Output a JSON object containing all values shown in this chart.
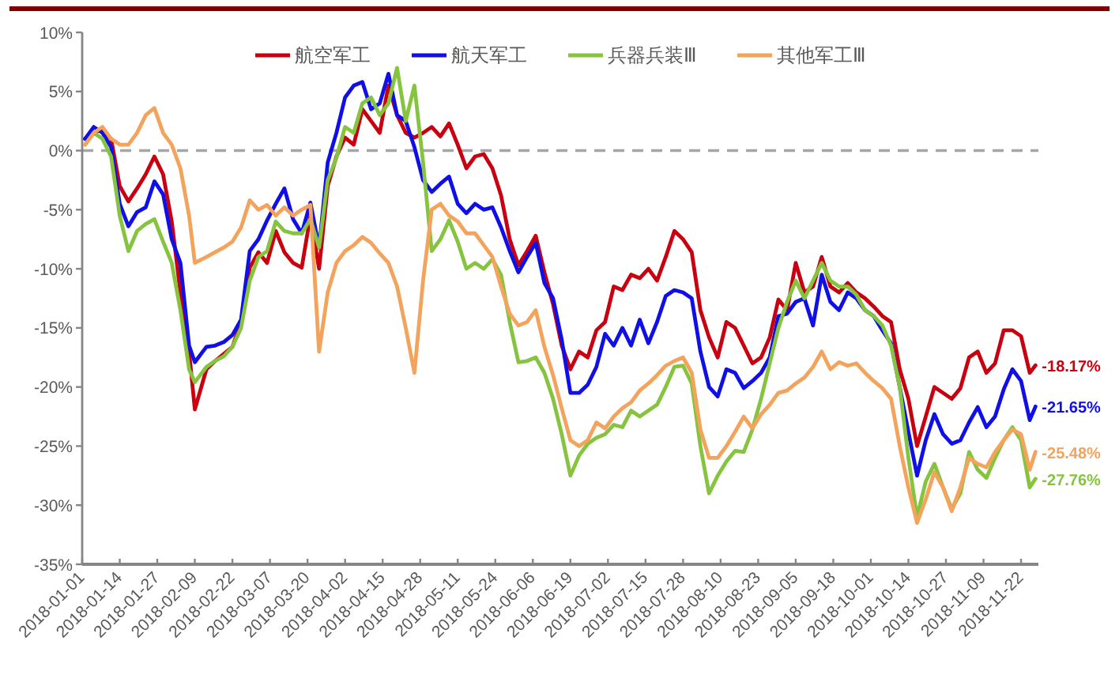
{
  "chart_data": {
    "type": "line",
    "x": [
      "2018-01-02",
      "2018-01-05",
      "2018-01-08",
      "2018-01-11",
      "2018-01-14",
      "2018-01-17",
      "2018-01-20",
      "2018-01-23",
      "2018-01-26",
      "2018-01-29",
      "2018-02-01",
      "2018-02-04",
      "2018-02-07",
      "2018-02-09",
      "2018-02-13",
      "2018-02-16",
      "2018-02-19",
      "2018-02-22",
      "2018-02-25",
      "2018-02-28",
      "2018-03-03",
      "2018-03-06",
      "2018-03-09",
      "2018-03-12",
      "2018-03-15",
      "2018-03-18",
      "2018-03-21",
      "2018-03-24",
      "2018-03-27",
      "2018-03-30",
      "2018-04-02",
      "2018-04-05",
      "2018-04-08",
      "2018-04-11",
      "2018-04-14",
      "2018-04-17",
      "2018-04-20",
      "2018-04-23",
      "2018-04-26",
      "2018-04-29",
      "2018-05-02",
      "2018-05-05",
      "2018-05-08",
      "2018-05-11",
      "2018-05-14",
      "2018-05-17",
      "2018-05-20",
      "2018-05-23",
      "2018-05-26",
      "2018-05-29",
      "2018-06-01",
      "2018-06-04",
      "2018-06-07",
      "2018-06-10",
      "2018-06-13",
      "2018-06-16",
      "2018-06-19",
      "2018-06-22",
      "2018-06-25",
      "2018-06-28",
      "2018-07-01",
      "2018-07-04",
      "2018-07-07",
      "2018-07-10",
      "2018-07-13",
      "2018-07-16",
      "2018-07-19",
      "2018-07-22",
      "2018-07-25",
      "2018-07-28",
      "2018-07-31",
      "2018-08-03",
      "2018-08-06",
      "2018-08-09",
      "2018-08-12",
      "2018-08-15",
      "2018-08-18",
      "2018-08-21",
      "2018-08-24",
      "2018-08-27",
      "2018-08-30",
      "2018-09-02",
      "2018-09-05",
      "2018-09-08",
      "2018-09-11",
      "2018-09-14",
      "2018-09-17",
      "2018-09-20",
      "2018-09-23",
      "2018-09-26",
      "2018-09-29",
      "2018-10-02",
      "2018-10-05",
      "2018-10-08",
      "2018-10-11",
      "2018-10-14",
      "2018-10-17",
      "2018-10-20",
      "2018-10-23",
      "2018-10-26",
      "2018-10-29",
      "2018-11-01",
      "2018-11-04",
      "2018-11-07",
      "2018-11-10",
      "2018-11-13",
      "2018-11-16",
      "2018-11-19",
      "2018-11-22",
      "2018-11-25",
      "2018-11-27"
    ],
    "xlim": [
      "2018-01-01",
      "2018-11-28"
    ],
    "xticks": [
      "2018-01-01",
      "2018-01-14",
      "2018-01-27",
      "2018-02-09",
      "2018-02-22",
      "2018-03-07",
      "2018-03-20",
      "2018-04-02",
      "2018-04-15",
      "2018-04-28",
      "2018-05-11",
      "2018-05-24",
      "2018-06-06",
      "2018-06-19",
      "2018-07-02",
      "2018-07-15",
      "2018-07-28",
      "2018-08-10",
      "2018-08-23",
      "2018-09-05",
      "2018-09-18",
      "2018-10-01",
      "2018-10-14",
      "2018-10-27",
      "2018-11-09",
      "2018-11-22"
    ],
    "ylim": [
      -35,
      10
    ],
    "yticks": [
      {
        "value": 10,
        "label": "10%"
      },
      {
        "value": 5,
        "label": "5%"
      },
      {
        "value": 0,
        "label": "0%"
      },
      {
        "value": -5,
        "label": "-5%"
      },
      {
        "value": -10,
        "label": "-10%"
      },
      {
        "value": -15,
        "label": "-15%"
      },
      {
        "value": -20,
        "label": "-20%"
      },
      {
        "value": -25,
        "label": "-25%"
      },
      {
        "value": -30,
        "label": "-30%"
      },
      {
        "value": -35,
        "label": "-35%"
      }
    ],
    "grid": false,
    "legend": "top",
    "ref_lines": [
      {
        "axis": "y",
        "value": 0,
        "color": "#a6a6a6",
        "line_style": "dashed"
      }
    ],
    "series": [
      {
        "name": "航空军工",
        "color": "#c8000f",
        "values": [
          1.0,
          1.5,
          1.8,
          1.0,
          -3.0,
          -4.3,
          -3.2,
          -2.0,
          -0.5,
          -2.0,
          -6.0,
          -12.0,
          -17.0,
          -21.9,
          -18.5,
          -17.8,
          -17.2,
          -16.6,
          -14.5,
          -9.9,
          -8.6,
          -9.5,
          -6.8,
          -8.6,
          -9.5,
          -9.9,
          -5.5,
          -10.0,
          -3.0,
          -0.5,
          1.1,
          0.5,
          3.5,
          2.5,
          1.5,
          5.5,
          3.0,
          1.5,
          1.1,
          1.5,
          2.0,
          1.2,
          2.3,
          0.5,
          -1.5,
          -0.5,
          -0.3,
          -1.5,
          -3.8,
          -7.5,
          -9.7,
          -8.5,
          -7.2,
          -10.3,
          -13.0,
          -16.5,
          -18.5,
          -17.0,
          -17.5,
          -15.2,
          -14.5,
          -11.5,
          -11.8,
          -10.5,
          -10.8,
          -10.0,
          -11.0,
          -9.0,
          -6.8,
          -7.5,
          -8.6,
          -13.5,
          -15.8,
          -17.5,
          -14.5,
          -15.0,
          -16.5,
          -18.0,
          -17.5,
          -15.8,
          -12.6,
          -13.5,
          -9.5,
          -12.0,
          -11.5,
          -9.0,
          -11.5,
          -12.0,
          -11.2,
          -12.0,
          -12.5,
          -13.2,
          -14.0,
          -14.5,
          -18.5,
          -21.0,
          -25.0,
          -22.5,
          -20.0,
          -20.5,
          -21.0,
          -20.1,
          -17.5,
          -17.0,
          -18.8,
          -18.0,
          -15.2,
          -15.2,
          -15.7,
          -18.8,
          -18.17
        ],
        "value_labels": [
          null,
          null,
          null,
          null,
          null,
          null,
          null,
          null,
          null,
          null,
          null,
          null,
          null,
          null,
          null,
          null,
          null,
          null,
          null,
          null,
          null,
          null,
          null,
          null,
          null,
          null,
          null,
          null,
          null,
          null,
          null,
          null,
          null,
          null,
          null,
          null,
          null,
          null,
          null,
          null,
          null,
          null,
          null,
          null,
          null,
          null,
          null,
          null,
          null,
          null,
          null,
          null,
          null,
          null,
          null,
          null,
          null,
          null,
          null,
          null,
          null,
          null,
          null,
          null,
          null,
          null,
          null,
          null,
          null,
          null,
          null,
          null,
          null,
          null,
          null,
          null,
          null,
          null,
          null,
          null,
          null,
          null,
          null,
          null,
          null,
          null,
          null,
          null,
          null,
          null,
          null,
          null,
          null,
          null,
          null,
          null,
          null,
          null,
          null,
          null,
          null,
          null,
          null,
          null,
          null,
          null,
          null,
          null,
          null,
          null,
          "-18.17%"
        ]
      },
      {
        "name": "航天军工",
        "color": "#1010e6",
        "values": [
          1.0,
          2.0,
          1.5,
          0.3,
          -4.5,
          -6.4,
          -5.2,
          -4.8,
          -2.6,
          -3.7,
          -7.5,
          -9.5,
          -16.5,
          -17.9,
          -16.6,
          -16.5,
          -16.2,
          -15.6,
          -14.3,
          -8.5,
          -7.5,
          -5.9,
          -4.5,
          -3.2,
          -5.8,
          -7.0,
          -4.4,
          -8.2,
          -1.0,
          1.5,
          4.5,
          5.5,
          5.8,
          3.5,
          4.0,
          6.5,
          3.0,
          2.5,
          0.3,
          -2.5,
          -3.5,
          -2.8,
          -2.2,
          -4.5,
          -5.3,
          -4.5,
          -5.0,
          -4.8,
          -6.5,
          -8.5,
          -10.3,
          -9.0,
          -7.8,
          -11.2,
          -12.5,
          -16.0,
          -20.5,
          -20.5,
          -19.8,
          -18.3,
          -15.5,
          -16.5,
          -15.0,
          -16.5,
          -14.3,
          -16.3,
          -14.5,
          -12.3,
          -11.8,
          -12.0,
          -12.5,
          -17.0,
          -20.0,
          -20.8,
          -18.5,
          -18.8,
          -20.1,
          -19.5,
          -18.8,
          -17.5,
          -14.0,
          -13.8,
          -12.8,
          -12.5,
          -14.8,
          -10.5,
          -12.8,
          -13.5,
          -12.0,
          -12.5,
          -13.5,
          -14.0,
          -15.2,
          -16.3,
          -20.0,
          -23.8,
          -27.5,
          -24.5,
          -22.3,
          -24.0,
          -24.8,
          -24.5,
          -23.0,
          -21.7,
          -23.4,
          -22.5,
          -20.2,
          -18.5,
          -19.5,
          -22.8,
          -21.65
        ],
        "value_labels": [
          null,
          null,
          null,
          null,
          null,
          null,
          null,
          null,
          null,
          null,
          null,
          null,
          null,
          null,
          null,
          null,
          null,
          null,
          null,
          null,
          null,
          null,
          null,
          null,
          null,
          null,
          null,
          null,
          null,
          null,
          null,
          null,
          null,
          null,
          null,
          null,
          null,
          null,
          null,
          null,
          null,
          null,
          null,
          null,
          null,
          null,
          null,
          null,
          null,
          null,
          null,
          null,
          null,
          null,
          null,
          null,
          null,
          null,
          null,
          null,
          null,
          null,
          null,
          null,
          null,
          null,
          null,
          null,
          null,
          null,
          null,
          null,
          null,
          null,
          null,
          null,
          null,
          null,
          null,
          null,
          null,
          null,
          null,
          null,
          null,
          null,
          null,
          null,
          null,
          null,
          null,
          null,
          null,
          null,
          null,
          null,
          null,
          null,
          null,
          null,
          null,
          null,
          null,
          null,
          null,
          null,
          null,
          null,
          null,
          null,
          "-21.65%"
        ]
      },
      {
        "name": "兵器兵装Ⅲ",
        "color": "#86c440",
        "values": [
          0.5,
          1.5,
          1.0,
          -0.5,
          -5.5,
          -8.5,
          -6.8,
          -6.2,
          -5.8,
          -7.7,
          -9.5,
          -13.5,
          -18.5,
          -19.6,
          -18.3,
          -17.8,
          -17.4,
          -16.6,
          -15.0,
          -11.0,
          -9.0,
          -8.5,
          -6.0,
          -6.8,
          -7.0,
          -7.0,
          -5.8,
          -8.2,
          -2.5,
          -0.6,
          2.0,
          1.5,
          4.0,
          4.5,
          3.0,
          4.0,
          7.0,
          2.5,
          5.5,
          -1.0,
          -8.5,
          -7.5,
          -5.9,
          -7.7,
          -10.0,
          -9.5,
          -10.0,
          -9.2,
          -10.5,
          -14.5,
          -17.9,
          -17.8,
          -17.5,
          -18.8,
          -21.0,
          -24.0,
          -27.5,
          -25.8,
          -24.8,
          -24.3,
          -24.0,
          -23.2,
          -23.4,
          -22.0,
          -22.5,
          -22.0,
          -21.5,
          -20.0,
          -18.3,
          -18.2,
          -19.7,
          -25.0,
          -29.0,
          -27.5,
          -26.3,
          -25.4,
          -25.5,
          -23.6,
          -21.0,
          -18.0,
          -15.0,
          -12.8,
          -11.0,
          -12.5,
          -11.0,
          -9.5,
          -11.0,
          -11.5,
          -11.5,
          -12.2,
          -13.5,
          -14.0,
          -14.8,
          -16.5,
          -20.0,
          -26.0,
          -31.0,
          -28.0,
          -26.5,
          -28.5,
          -30.3,
          -29.0,
          -25.5,
          -27.0,
          -27.7,
          -26.0,
          -24.5,
          -23.4,
          -24.5,
          -28.5,
          -27.76
        ],
        "value_labels": [
          null,
          null,
          null,
          null,
          null,
          null,
          null,
          null,
          null,
          null,
          null,
          null,
          null,
          null,
          null,
          null,
          null,
          null,
          null,
          null,
          null,
          null,
          null,
          null,
          null,
          null,
          null,
          null,
          null,
          null,
          null,
          null,
          null,
          null,
          null,
          null,
          null,
          null,
          null,
          null,
          null,
          null,
          null,
          null,
          null,
          null,
          null,
          null,
          null,
          null,
          null,
          null,
          null,
          null,
          null,
          null,
          null,
          null,
          null,
          null,
          null,
          null,
          null,
          null,
          null,
          null,
          null,
          null,
          null,
          null,
          null,
          null,
          null,
          null,
          null,
          null,
          null,
          null,
          null,
          null,
          null,
          null,
          null,
          null,
          null,
          null,
          null,
          null,
          null,
          null,
          null,
          null,
          null,
          null,
          null,
          null,
          null,
          null,
          null,
          null,
          null,
          null,
          null,
          null,
          null,
          null,
          null,
          null,
          null,
          null,
          "-27.76%"
        ]
      },
      {
        "name": "其他军工Ⅲ",
        "color": "#f3a35c",
        "values": [
          0.5,
          1.5,
          2.0,
          1.0,
          0.5,
          0.5,
          1.5,
          3.0,
          3.6,
          1.5,
          0.5,
          -1.5,
          -5.5,
          -9.5,
          -9.0,
          -8.6,
          -8.2,
          -7.7,
          -6.5,
          -4.2,
          -5.0,
          -4.6,
          -5.5,
          -4.8,
          -5.5,
          -5.0,
          -4.6,
          -17.0,
          -12.0,
          -9.5,
          -8.5,
          -8.0,
          -7.3,
          -7.8,
          -8.7,
          -9.5,
          -11.5,
          -15.0,
          -18.8,
          -11.0,
          -5.0,
          -4.5,
          -5.5,
          -6.0,
          -7.0,
          -7.0,
          -8.0,
          -9.0,
          -11.5,
          -13.8,
          -14.8,
          -14.5,
          -13.5,
          -16.6,
          -19.0,
          -21.8,
          -24.5,
          -25.0,
          -24.5,
          -23.0,
          -23.5,
          -22.5,
          -21.8,
          -21.3,
          -20.3,
          -19.7,
          -19.0,
          -18.2,
          -17.8,
          -17.5,
          -18.8,
          -23.6,
          -26.0,
          -26.0,
          -25.0,
          -23.8,
          -22.5,
          -23.5,
          -22.3,
          -21.5,
          -20.5,
          -20.3,
          -19.7,
          -19.2,
          -18.3,
          -17.0,
          -18.5,
          -17.9,
          -18.2,
          -18.0,
          -18.8,
          -19.5,
          -20.1,
          -21.0,
          -25.0,
          -28.5,
          -31.5,
          -29.5,
          -27.2,
          -28.5,
          -30.5,
          -28.5,
          -26.0,
          -26.5,
          -26.8,
          -25.5,
          -24.5,
          -23.6,
          -24.0,
          -27.0,
          -25.48
        ],
        "value_labels": [
          null,
          null,
          null,
          null,
          null,
          null,
          null,
          null,
          null,
          null,
          null,
          null,
          null,
          null,
          null,
          null,
          null,
          null,
          null,
          null,
          null,
          null,
          null,
          null,
          null,
          null,
          null,
          null,
          null,
          null,
          null,
          null,
          null,
          null,
          null,
          null,
          null,
          null,
          null,
          null,
          null,
          null,
          null,
          null,
          null,
          null,
          null,
          null,
          null,
          null,
          null,
          null,
          null,
          null,
          null,
          null,
          null,
          null,
          null,
          null,
          null,
          null,
          null,
          null,
          null,
          null,
          null,
          null,
          null,
          null,
          null,
          null,
          null,
          null,
          null,
          null,
          null,
          null,
          null,
          null,
          null,
          null,
          null,
          null,
          null,
          null,
          null,
          null,
          null,
          null,
          null,
          null,
          null,
          null,
          null,
          null,
          null,
          null,
          null,
          null,
          null,
          null,
          null,
          null,
          null,
          null,
          null,
          null,
          null,
          null,
          "-25.48%"
        ]
      }
    ]
  }
}
